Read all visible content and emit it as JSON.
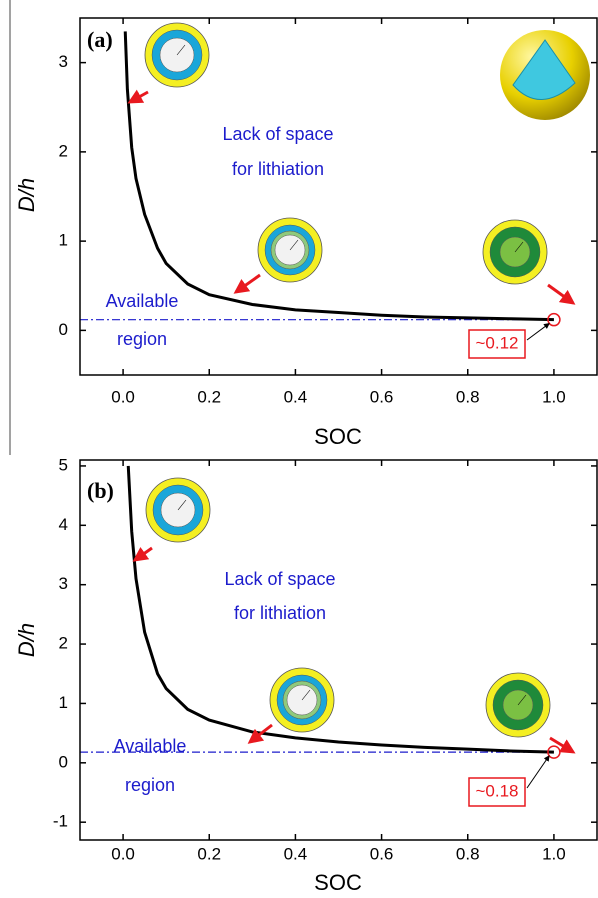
{
  "chart_data": [
    {
      "type": "line",
      "panel_label": "(a)",
      "xlabel": "SOC",
      "ylabel": "D/h",
      "x": [
        0.005,
        0.01,
        0.02,
        0.03,
        0.05,
        0.08,
        0.1,
        0.15,
        0.2,
        0.3,
        0.4,
        0.5,
        0.6,
        0.7,
        0.8,
        0.9,
        1.0
      ],
      "values": [
        3.35,
        2.7,
        2.05,
        1.7,
        1.3,
        0.92,
        0.75,
        0.52,
        0.4,
        0.29,
        0.23,
        0.2,
        0.17,
        0.15,
        0.14,
        0.13,
        0.12
      ],
      "color": "#000000",
      "xlim": [
        -0.1,
        1.1
      ],
      "ylim": [
        -0.5,
        3.5
      ],
      "xticks": [
        {
          "value": 0,
          "label": "0.0"
        },
        0.2,
        0.4,
        0.6,
        0.8,
        {
          "value": 1,
          "label": "1.0"
        }
      ],
      "yticks": [
        0,
        1,
        2,
        3
      ],
      "annotations": [
        "Lack of space",
        "for lithiation",
        "Available",
        "region"
      ],
      "threshold": {
        "value": 0.12,
        "label": "~0.12"
      }
    },
    {
      "type": "line",
      "panel_label": "(b)",
      "xlabel": "SOC",
      "ylabel": "D/h",
      "x": [
        0.012,
        0.02,
        0.03,
        0.05,
        0.08,
        0.1,
        0.15,
        0.2,
        0.3,
        0.4,
        0.5,
        0.6,
        0.7,
        0.8,
        0.9,
        1.0
      ],
      "values": [
        5.0,
        3.9,
        3.1,
        2.2,
        1.5,
        1.25,
        0.9,
        0.72,
        0.52,
        0.42,
        0.35,
        0.3,
        0.26,
        0.23,
        0.2,
        0.18
      ],
      "color": "#000000",
      "xlim": [
        -0.1,
        1.1
      ],
      "ylim": [
        -1.3,
        5.1
      ],
      "xticks": [
        {
          "value": 0,
          "label": "0.0"
        },
        0.2,
        0.4,
        0.6,
        0.8,
        {
          "value": 1,
          "label": "1.0"
        }
      ],
      "yticks": [
        -1,
        0,
        1,
        2,
        3,
        4,
        5
      ],
      "annotations": [
        "Lack of space",
        "for lithiation",
        "Available",
        "region"
      ],
      "threshold": {
        "value": 0.18,
        "label": "~0.18"
      }
    }
  ]
}
